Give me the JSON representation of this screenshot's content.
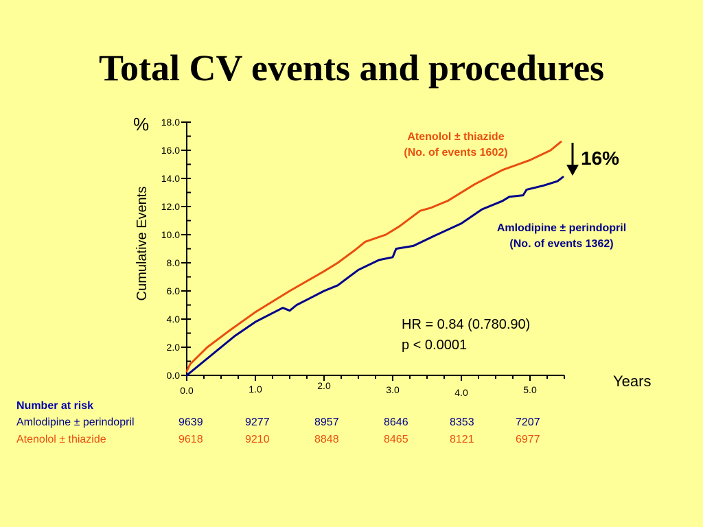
{
  "slide": {
    "title": "Total CV events and procedures"
  },
  "colors": {
    "background": "#FFFF99",
    "atenolol": "#E84E0F",
    "amlodipine": "#00008B"
  },
  "chart_data": {
    "type": "line",
    "ylabel": "Cumulative Events",
    "yunit": "%",
    "xunit": "Years",
    "xlim": [
      0,
      5.5
    ],
    "ylim": [
      0,
      18
    ],
    "x_ticks": [
      "0.0",
      "1.0",
      "2.0",
      "3.0",
      "4.0",
      "5.0"
    ],
    "y_ticks": [
      "0.0",
      "2.0",
      "4.0",
      "6.0",
      "8.0",
      "10.0",
      "12.0",
      "14.0",
      "16.0",
      "18.0"
    ],
    "series": [
      {
        "name": "Atenolol ± thiazide",
        "label_line1": "Atenolol ± thiazide",
        "label_line2": "(No. of events 1602)",
        "color": "#E84E0F",
        "x": [
          0,
          0.05,
          0.3,
          0.6,
          1.0,
          1.5,
          2.0,
          2.2,
          2.45,
          2.6,
          2.9,
          3.1,
          3.4,
          3.55,
          3.8,
          4.2,
          4.6,
          5.0,
          5.3,
          5.45
        ],
        "y": [
          0.3,
          0.8,
          2.0,
          3.1,
          4.5,
          6.0,
          7.4,
          8.0,
          8.9,
          9.5,
          10.0,
          10.6,
          11.7,
          11.9,
          12.4,
          13.6,
          14.6,
          15.3,
          16.0,
          16.6
        ]
      },
      {
        "name": "Amlodipine ± perindopril",
        "label_line1": "Amlodipine ± perindopril",
        "label_line2": "(No. of events 1362)",
        "color": "#00008B",
        "x": [
          0,
          0.3,
          0.7,
          1.0,
          1.4,
          1.5,
          1.6,
          1.8,
          2.0,
          2.2,
          2.5,
          2.8,
          3.0,
          3.05,
          3.3,
          3.6,
          4.0,
          4.3,
          4.6,
          4.7,
          4.9,
          4.95,
          5.2,
          5.4,
          5.48
        ],
        "y": [
          0,
          1.2,
          2.8,
          3.8,
          4.8,
          4.6,
          5.0,
          5.5,
          6.0,
          6.4,
          7.5,
          8.2,
          8.4,
          9.0,
          9.2,
          9.9,
          10.8,
          11.8,
          12.4,
          12.7,
          12.8,
          13.2,
          13.5,
          13.8,
          14.1
        ]
      }
    ],
    "annotations": {
      "reduction": "16%",
      "hr": "HR = 0.84 (0.780.90)",
      "p": "p < 0.0001"
    },
    "number_at_risk": {
      "heading": "Number at risk",
      "rows": [
        {
          "label": "Amlodipine ± perindopril",
          "color": "#00008B",
          "values": [
            "9639",
            "9277",
            "8957",
            "8646",
            "8353",
            "7207"
          ]
        },
        {
          "label": "Atenolol ± thiazide",
          "color": "#E84E0F",
          "values": [
            "9618",
            "9210",
            "8848",
            "8465",
            "8121",
            "6977"
          ]
        }
      ]
    }
  }
}
